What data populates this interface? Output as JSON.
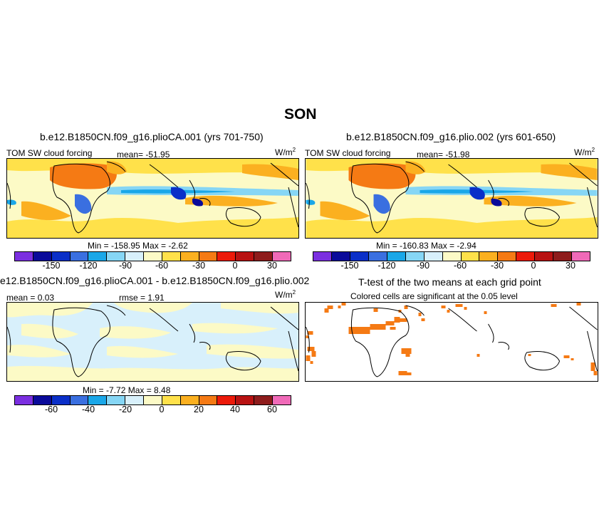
{
  "figure": {
    "title": "SON"
  },
  "panel1": {
    "title": "b.e12.B1850CN.f09_g16.plioCA.001 (yrs 701-750)",
    "variable": "TOM SW cloud forcing",
    "mean": "mean= -51.95",
    "units": "W/m",
    "units_exp": "2",
    "minmax": "Min = -158.95 Max = -2.62"
  },
  "panel2": {
    "title": "b.e12.B1850CN.f09_g16.plio.002 (yrs 601-650)",
    "variable": "TOM SW cloud forcing",
    "mean": "mean= -51.98",
    "units": "W/m",
    "units_exp": "2",
    "minmax": "Min = -160.83 Max = -2.94"
  },
  "panel3": {
    "title": "e12.B1850CN.f09_g16.plioCA.001 - b.e12.B1850CN.f09_g16.plio.002",
    "mean": "mean = 0.03",
    "rmse": "rmse = 1.91",
    "units": "W/m",
    "units_exp": "2",
    "minmax": "Min = -7.72 Max = 8.48"
  },
  "panel4": {
    "title": "T-test of the two means at each grid point",
    "subtitle": "Colored cells are significant at the 0.05 level"
  },
  "colorbar_main": {
    "colors": [
      "#7b2fe0",
      "#0a0a9a",
      "#0a2fc8",
      "#3a6fe0",
      "#1aa7e8",
      "#86d6f5",
      "#d8f0fb",
      "#fcfac6",
      "#ffe14a",
      "#fbb020",
      "#f57a14",
      "#ec1a0a",
      "#b81212",
      "#8e1c1c",
      "#f06ab8"
    ],
    "ticks": [
      "-150",
      "-120",
      "-90",
      "-60",
      "-30",
      "0",
      "30"
    ]
  },
  "colorbar_diff": {
    "colors": [
      "#7b2fe0",
      "#0a0a9a",
      "#0a2fc8",
      "#3a6fe0",
      "#1aa7e8",
      "#86d6f5",
      "#d8f0fb",
      "#fcfac6",
      "#ffe14a",
      "#fbb020",
      "#f57a14",
      "#ec1a0a",
      "#b81212",
      "#8e1c1c",
      "#f06ab8"
    ],
    "ticks": [
      "-60",
      "-40",
      "-20",
      "0",
      "20",
      "40",
      "60"
    ]
  }
}
